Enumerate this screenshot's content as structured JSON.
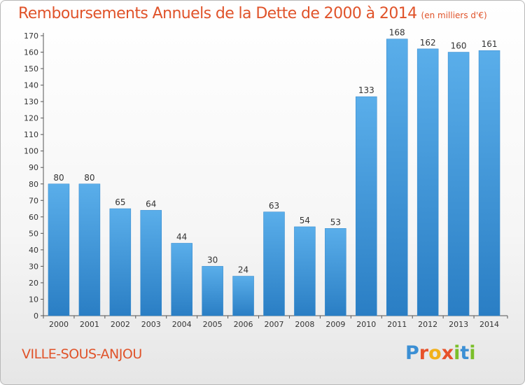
{
  "chart_data": {
    "type": "bar",
    "title": "Remboursements Annuels de la Dette de 2000 à 2014",
    "subtitle": "(en milliers d'€)",
    "categories": [
      "2000",
      "2001",
      "2002",
      "2003",
      "2004",
      "2005",
      "2006",
      "2007",
      "2008",
      "2009",
      "2010",
      "2011",
      "2012",
      "2013",
      "2014"
    ],
    "values": [
      80,
      80,
      65,
      64,
      44,
      30,
      24,
      63,
      54,
      53,
      133,
      168,
      162,
      160,
      161
    ],
    "ylim": [
      0,
      170
    ],
    "yticks": [
      0,
      10,
      20,
      30,
      40,
      50,
      60,
      70,
      80,
      90,
      100,
      110,
      120,
      130,
      140,
      150,
      160,
      170
    ],
    "xlabel": "",
    "ylabel": "",
    "grid": false,
    "bar_color": "#3a91d6"
  },
  "footer": {
    "commune": "VILLE-SOUS-ANJOU",
    "brand_letters": [
      {
        "ch": "P",
        "color": "#3b8fd4"
      },
      {
        "ch": "r",
        "color": "#e7522b"
      },
      {
        "ch": "o",
        "color": "#f2b11b"
      },
      {
        "ch": "x",
        "color": "#e7522b"
      },
      {
        "ch": "i",
        "color": "#7bbf2a"
      },
      {
        "ch": "t",
        "color": "#3b8fd4"
      },
      {
        "ch": "i",
        "color": "#7bbf2a"
      }
    ]
  }
}
